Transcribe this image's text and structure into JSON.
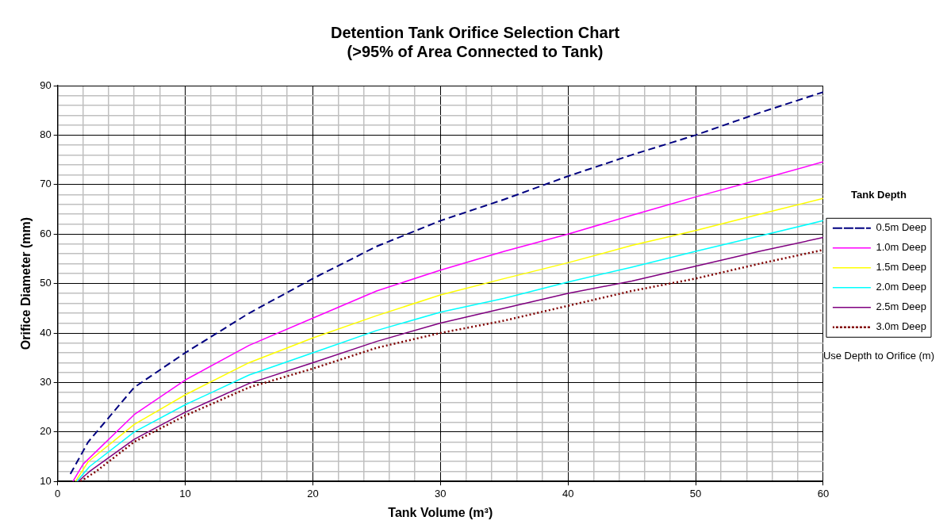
{
  "chart_data": {
    "type": "line",
    "title": "Detention Tank Orifice Selection Chart\n(>95% of Area Connected to Tank)",
    "xlabel": "Tank Volume (m³)",
    "ylabel": "Orifice Diameter (mm)",
    "legend_title": "Tank Depth",
    "legend": "right",
    "grid": true,
    "marker": "none",
    "annotations": [
      "Use Depth to Orifice (m)"
    ],
    "xlim": [
      0,
      60
    ],
    "ylim": [
      10,
      90
    ],
    "xticks": [
      0,
      {
        "value": 2,
        "label": null
      },
      {
        "value": 4,
        "label": null
      },
      {
        "value": 6,
        "label": null
      },
      {
        "value": 8,
        "label": null
      },
      10,
      {
        "value": 12,
        "label": null
      },
      {
        "value": 14,
        "label": null
      },
      {
        "value": 16,
        "label": null
      },
      {
        "value": 18,
        "label": null
      },
      20,
      {
        "value": 22,
        "label": null
      },
      {
        "value": 24,
        "label": null
      },
      {
        "value": 26,
        "label": null
      },
      {
        "value": 28,
        "label": null
      },
      30,
      {
        "value": 32,
        "label": null
      },
      {
        "value": 34,
        "label": null
      },
      {
        "value": 36,
        "label": null
      },
      {
        "value": 38,
        "label": null
      },
      40,
      {
        "value": 42,
        "label": null
      },
      {
        "value": 44,
        "label": null
      },
      {
        "value": 46,
        "label": null
      },
      {
        "value": 48,
        "label": null
      },
      50,
      {
        "value": 52,
        "label": null
      },
      {
        "value": 54,
        "label": null
      },
      {
        "value": 56,
        "label": null
      },
      {
        "value": 58,
        "label": null
      },
      60
    ],
    "yticks": [
      10,
      {
        "value": 12,
        "label": null
      },
      {
        "value": 14,
        "label": null
      },
      {
        "value": 16,
        "label": null
      },
      {
        "value": 18,
        "label": null
      },
      20,
      {
        "value": 22,
        "label": null
      },
      {
        "value": 24,
        "label": null
      },
      {
        "value": 26,
        "label": null
      },
      {
        "value": 28,
        "label": null
      },
      30,
      {
        "value": 32,
        "label": null
      },
      {
        "value": 34,
        "label": null
      },
      {
        "value": 36,
        "label": null
      },
      {
        "value": 38,
        "label": null
      },
      40,
      {
        "value": 42,
        "label": null
      },
      {
        "value": 44,
        "label": null
      },
      {
        "value": 46,
        "label": null
      },
      {
        "value": 48,
        "label": null
      },
      50,
      {
        "value": 52,
        "label": null
      },
      {
        "value": 54,
        "label": null
      },
      {
        "value": 56,
        "label": null
      },
      {
        "value": 58,
        "label": null
      },
      60,
      {
        "value": 62,
        "label": null
      },
      {
        "value": 64,
        "label": null
      },
      {
        "value": 66,
        "label": null
      },
      {
        "value": 68,
        "label": null
      },
      70,
      {
        "value": 72,
        "label": null
      },
      {
        "value": 74,
        "label": null
      },
      {
        "value": 76,
        "label": null
      },
      {
        "value": 78,
        "label": null
      },
      80,
      {
        "value": 82,
        "label": null
      },
      {
        "value": 84,
        "label": null
      },
      {
        "value": 86,
        "label": null
      },
      {
        "value": 88,
        "label": null
      },
      90
    ],
    "series": [
      {
        "name": "0.5m Deep",
        "color": "#000080",
        "line_style": "dashed",
        "x": [
          1,
          2.4,
          6,
          10,
          15,
          20,
          25,
          30,
          35,
          40,
          45,
          50,
          55,
          60
        ],
        "values": [
          11.5,
          18,
          29,
          36,
          44,
          51,
          57.5,
          62.7,
          67,
          71.7,
          76,
          80,
          84.5,
          88.7
        ]
      },
      {
        "name": "1.0m Deep",
        "color": "#ff00ff",
        "line_style": "solid",
        "x": [
          1.2,
          2,
          6,
          10,
          15,
          20,
          25,
          30,
          35,
          40,
          45,
          50,
          55,
          60
        ],
        "values": [
          10,
          13.5,
          23.5,
          30.5,
          37.5,
          43,
          48.5,
          52.7,
          56.5,
          60,
          63.8,
          67.5,
          71,
          74.6
        ]
      },
      {
        "name": "1.5m Deep",
        "color": "#ffff00",
        "line_style": "solid",
        "x": [
          1.4,
          2.4,
          6,
          10,
          15,
          20,
          25,
          30,
          35,
          40,
          45,
          50,
          55,
          60
        ],
        "values": [
          10,
          14,
          21.5,
          27.5,
          34,
          39,
          43.5,
          47.7,
          51,
          54.2,
          57.7,
          60.7,
          64,
          67.2
        ]
      },
      {
        "name": "2.0m Deep",
        "color": "#00ffff",
        "line_style": "solid",
        "x": [
          1.5,
          2.5,
          6,
          10,
          15,
          20,
          25,
          30,
          35,
          40,
          45,
          50,
          55,
          60
        ],
        "values": [
          10,
          13,
          20,
          25.5,
          31.5,
          36,
          40.5,
          44.2,
          47,
          50.3,
          53.3,
          56.5,
          59.6,
          62.7
        ]
      },
      {
        "name": "2.5m Deep",
        "color": "#800080",
        "line_style": "solid",
        "x": [
          1.6,
          2.5,
          6,
          10,
          15,
          20,
          25,
          30,
          35,
          40,
          45,
          50,
          55,
          60
        ],
        "values": [
          10,
          12,
          18.5,
          24,
          29.8,
          34,
          38.3,
          42,
          45,
          48,
          50.5,
          53.5,
          56.5,
          59.3
        ]
      },
      {
        "name": "3.0m Deep",
        "color": "#800000",
        "line_style": "dotted",
        "x": [
          1.8,
          3,
          6,
          10,
          15,
          20,
          25,
          30,
          35,
          40,
          45,
          50,
          55,
          60
        ],
        "values": [
          10,
          12,
          18,
          23.3,
          29,
          32.8,
          37,
          40,
          42.5,
          45.5,
          48.5,
          51,
          54,
          56.8
        ]
      }
    ]
  }
}
